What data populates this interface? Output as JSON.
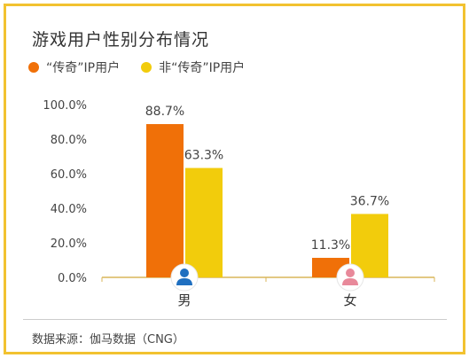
{
  "title": "游戏用户性别分布情况",
  "source": "数据来源：伽马数据（CNG）",
  "chart_data": {
    "type": "bar",
    "categories": [
      "男",
      "女"
    ],
    "series": [
      {
        "name": "“传奇”IP用户",
        "values": [
          88.7,
          11.3
        ],
        "labels": [
          "88.7%",
          "11.3%"
        ],
        "color": "#f07008"
      },
      {
        "name": "非“传奇”IP用户",
        "values": [
          63.3,
          36.7
        ],
        "labels": [
          "63.3%",
          "36.7%"
        ],
        "color": "#f2cc0c"
      }
    ],
    "ylim": [
      0,
      100
    ],
    "yticks": [
      0,
      20,
      40,
      60,
      80,
      100
    ],
    "ytick_labels": [
      "0.0%",
      "20.0%",
      "40.0%",
      "60.0%",
      "80.0%",
      "100.0%"
    ],
    "category_icons": [
      "male-user-icon",
      "female-user-icon"
    ],
    "icon_colors": [
      "#1f6fc0",
      "#e8899a"
    ],
    "legend": "top-left",
    "grid": false
  }
}
